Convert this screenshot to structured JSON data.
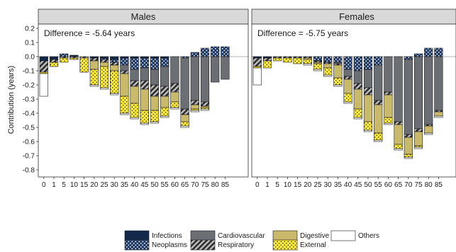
{
  "chart_data": {
    "type": "bar",
    "subtype": "stacked-decomposition",
    "ylabel": "Contribution (years)",
    "ylim": [
      -0.85,
      0.23
    ],
    "y_ticks": [
      0.2,
      0.1,
      0.0,
      -0.1,
      -0.2,
      -0.3,
      -0.4,
      -0.5,
      -0.6,
      -0.7,
      -0.8
    ],
    "y_tick_labels": [
      "0.2",
      "0.1",
      "0.0",
      "-0.1",
      "-0.2",
      "-0.3",
      "-0.4",
      "-0.5",
      "-0.6",
      "-0.7",
      "-0.8"
    ],
    "categories": [
      "0",
      "1",
      "5",
      "10",
      "15",
      "20",
      "25",
      "30",
      "35",
      "40",
      "45",
      "50",
      "55",
      "60",
      "65",
      "70",
      "75",
      "80",
      "85"
    ],
    "causes": [
      {
        "key": "infections",
        "label": "Infections",
        "color": "#13294b",
        "pattern": "solid"
      },
      {
        "key": "neoplasms",
        "label": "Neoplasms",
        "color": "#1f3a68",
        "pattern": "dots-white"
      },
      {
        "key": "cardiovascular",
        "label": "Cardiovascular",
        "color": "#6b6e73",
        "pattern": "solid"
      },
      {
        "key": "respiratory",
        "label": "Respiratory",
        "color": "#3c3c3c",
        "pattern": "hatch"
      },
      {
        "key": "digestive",
        "label": "Digestive",
        "color": "#c9b96a",
        "pattern": "solid"
      },
      {
        "key": "external",
        "label": "External",
        "color": "#ffeb3b",
        "pattern": "dots-black"
      },
      {
        "key": "others",
        "label": "Others",
        "color": "#ffffff",
        "pattern": "solid"
      }
    ],
    "panels": [
      {
        "title": "Males",
        "annotation": "Difference = -5.64 years",
        "values": {
          "others": [
            -0.16,
            0.0,
            0.0,
            0.0,
            0.0,
            -0.01,
            -0.01,
            -0.01,
            -0.01,
            -0.01,
            -0.01,
            -0.01,
            -0.01,
            -0.01,
            -0.01,
            -0.01,
            -0.01,
            0.0,
            0.0
          ],
          "external": [
            -0.01,
            -0.03,
            -0.03,
            -0.01,
            -0.1,
            -0.11,
            -0.15,
            -0.16,
            -0.12,
            -0.1,
            -0.09,
            -0.08,
            -0.06,
            -0.04,
            -0.03,
            -0.01,
            -0.01,
            0.0,
            0.0
          ],
          "digestive": [
            0.0,
            0.0,
            0.0,
            0.0,
            0.0,
            -0.06,
            -0.03,
            -0.04,
            -0.16,
            -0.12,
            -0.15,
            -0.1,
            -0.08,
            -0.07,
            -0.05,
            -0.03,
            -0.01,
            0.0,
            0.0
          ],
          "respiratory": [
            -0.08,
            -0.02,
            -0.01,
            -0.01,
            -0.01,
            -0.02,
            -0.02,
            -0.02,
            -0.02,
            -0.04,
            -0.06,
            -0.08,
            -0.07,
            -0.06,
            -0.04,
            -0.03,
            -0.03,
            0.0,
            0.0
          ],
          "cardiovascular": [
            0.0,
            0.0,
            0.0,
            0.0,
            0.0,
            0.0,
            0.0,
            0.0,
            -0.04,
            -0.08,
            -0.09,
            -0.11,
            -0.14,
            -0.19,
            -0.36,
            -0.31,
            -0.32,
            -0.18,
            -0.16
          ],
          "neoplasms": [
            0.0,
            0.0,
            0.02,
            0.0,
            0.0,
            0.0,
            -0.01,
            -0.02,
            -0.05,
            -0.08,
            -0.07,
            -0.08,
            -0.06,
            0.0,
            -0.01,
            0.03,
            0.06,
            0.07,
            0.07
          ],
          "infections": [
            -0.03,
            -0.02,
            0.0,
            0.01,
            0.0,
            -0.01,
            -0.01,
            -0.02,
            -0.01,
            -0.01,
            -0.01,
            -0.01,
            -0.01,
            0.0,
            0.0,
            0.0,
            0.0,
            0.0,
            0.0
          ]
        }
      },
      {
        "title": "Females",
        "annotation": "Difference = -5.75 years",
        "values": {
          "others": [
            -0.12,
            0.0,
            0.0,
            0.0,
            0.0,
            -0.01,
            -0.01,
            -0.01,
            -0.01,
            -0.01,
            -0.01,
            -0.01,
            -0.01,
            -0.01,
            -0.01,
            -0.01,
            -0.01,
            -0.01,
            -0.01
          ],
          "external": [
            -0.01,
            -0.05,
            -0.02,
            -0.03,
            -0.04,
            -0.03,
            -0.04,
            -0.05,
            -0.05,
            -0.06,
            -0.06,
            -0.06,
            -0.05,
            -0.04,
            -0.03,
            -0.02,
            -0.01,
            0.0,
            0.0
          ],
          "digestive": [
            0.0,
            0.0,
            0.0,
            0.0,
            0.0,
            -0.01,
            -0.01,
            -0.03,
            -0.09,
            -0.1,
            -0.14,
            -0.19,
            -0.2,
            -0.16,
            -0.14,
            -0.12,
            -0.1,
            -0.05,
            -0.03
          ],
          "respiratory": [
            -0.06,
            -0.02,
            -0.01,
            -0.01,
            -0.01,
            -0.01,
            -0.01,
            -0.01,
            -0.01,
            -0.02,
            -0.04,
            -0.05,
            -0.03,
            -0.02,
            -0.02,
            -0.02,
            -0.02,
            -0.01,
            -0.01
          ],
          "cardiovascular": [
            0.0,
            0.0,
            0.0,
            0.0,
            0.0,
            0.0,
            0.0,
            0.0,
            -0.01,
            -0.05,
            -0.09,
            -0.13,
            -0.25,
            -0.25,
            -0.46,
            -0.53,
            -0.51,
            -0.48,
            -0.38
          ],
          "neoplasms": [
            0.0,
            0.0,
            0.0,
            0.0,
            0.0,
            0.0,
            -0.03,
            -0.04,
            -0.04,
            -0.09,
            -0.1,
            -0.09,
            -0.06,
            0.0,
            0.0,
            -0.02,
            0.02,
            0.06,
            0.06
          ],
          "infections": [
            -0.01,
            -0.01,
            0.0,
            0.0,
            0.0,
            0.0,
            0.0,
            0.0,
            0.0,
            0.0,
            0.0,
            0.0,
            0.0,
            0.0,
            0.0,
            0.0,
            0.0,
            0.0,
            0.0
          ]
        }
      }
    ],
    "legend": {
      "position": "bottom"
    }
  }
}
